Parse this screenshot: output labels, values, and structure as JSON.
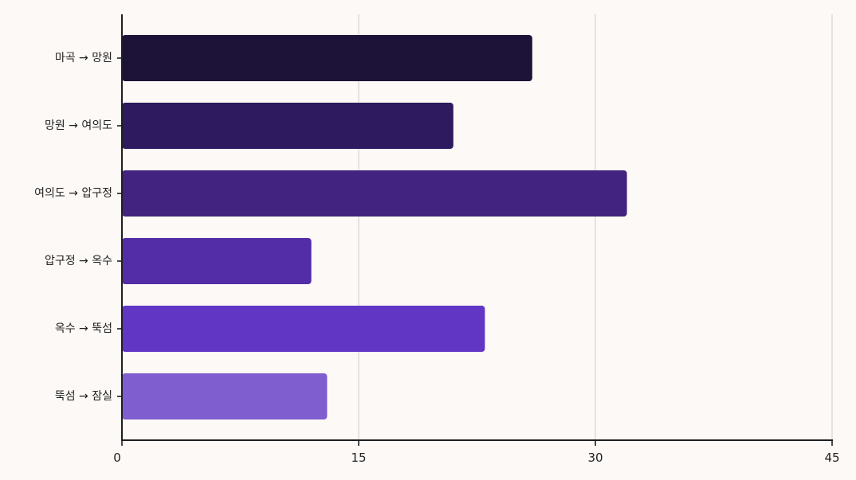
{
  "chart_data": {
    "type": "bar",
    "orientation": "horizontal",
    "categories": [
      "마곡 → 망원",
      "망원 → 여의도",
      "여의도 → 압구정",
      "압구정 → 옥수",
      "옥수 → 뚝섬",
      "뚝섬 → 잠실"
    ],
    "values": [
      26,
      21,
      32,
      12,
      23,
      13
    ],
    "bar_colors": [
      "#1d1238",
      "#2e1a5e",
      "#42237f",
      "#532da7",
      "#6236c4",
      "#7f5ecf"
    ],
    "xlim": [
      0,
      45
    ],
    "xticks": [
      0,
      15,
      30,
      45
    ],
    "xlabel": "",
    "ylabel": "",
    "title": "",
    "grid": "vertical",
    "legend": "none"
  }
}
